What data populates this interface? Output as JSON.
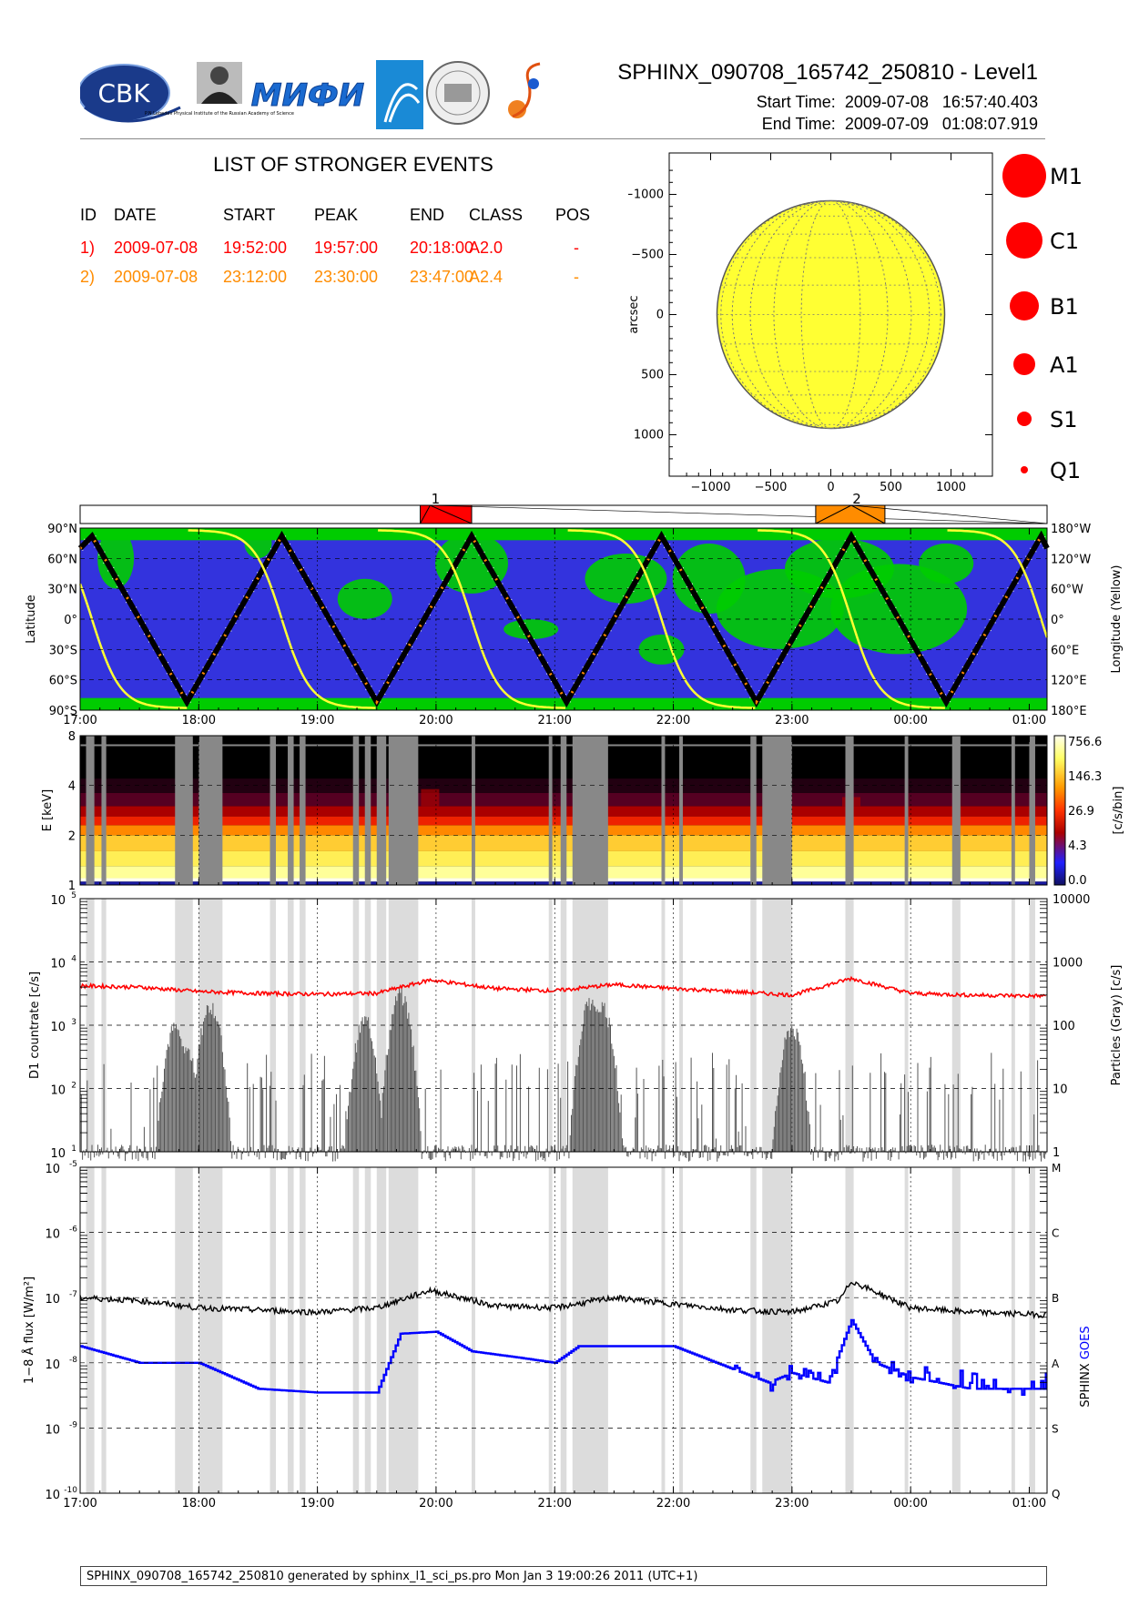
{
  "header": {
    "title": "SPHINX_090708_165742_250810 - Level1",
    "start_label": "Start Time:",
    "start_value": "2009-07-08   16:57:40.403",
    "end_label": "End Time:",
    "end_value": "2009-07-09   01:08:07.919",
    "logos": [
      {
        "name": "cbk-logo",
        "text": "CBK"
      },
      {
        "name": "lebedev-institute-logo",
        "text": "P.N.Lebedev Physical Institute of the Russian Academy of Science"
      },
      {
        "name": "mifi-logo",
        "text": "МИФИ"
      },
      {
        "name": "institute-shield-logo"
      },
      {
        "name": "university-seal-logo"
      },
      {
        "name": "spiral-logo"
      }
    ]
  },
  "events": {
    "title": "LIST OF STRONGER EVENTS",
    "columns": [
      "ID",
      "DATE",
      "START",
      "PEAK",
      "END",
      "CLASS",
      "POS"
    ],
    "rows": [
      {
        "id": "1)",
        "date": "2009-07-08",
        "start": "19:52:00",
        "peak": "19:57:00",
        "end": "20:18:00",
        "class": "A2.0",
        "pos": "-",
        "color": "#ff0000"
      },
      {
        "id": "2)",
        "date": "2009-07-08",
        "start": "23:12:00",
        "peak": "23:30:00",
        "end": "23:47:00",
        "class": "A2.4",
        "pos": "-",
        "color": "#ff8c00"
      }
    ]
  },
  "sun_map": {
    "xlabel": "arcsec",
    "ylabel": "arcsec",
    "x_ticks": [
      "−1000",
      "−500",
      "0",
      "500",
      "1000"
    ],
    "y_ticks": [
      "1000",
      "500",
      "0",
      "−500",
      "−1000"
    ],
    "disk_color": "#ffff33"
  },
  "class_legend": [
    "M1",
    "C1",
    "B1",
    "A1",
    "S1",
    "Q1"
  ],
  "timeline": {
    "time_ticks": [
      "17:00",
      "18:00",
      "19:00",
      "20:00",
      "21:00",
      "22:00",
      "23:00",
      "00:00",
      "01:00"
    ],
    "event_bars": [
      {
        "label": "1",
        "start": "19:52",
        "peak": "19:57",
        "end": "20:18",
        "color": "#ff0000"
      },
      {
        "label": "2",
        "start": "23:12",
        "peak": "23:30",
        "end": "23:47",
        "color": "#ff8c00"
      }
    ]
  },
  "chart_data": [
    {
      "type": "line",
      "name": "orbit-panel",
      "ylabel": "Latitude",
      "ylabel_right": "Longitude (Yellow)",
      "y_ticks_left": [
        "90°N",
        "60°N",
        "30°N",
        "0°",
        "30°S",
        "60°S",
        "90°S"
      ],
      "y_ticks_right": [
        "180°W",
        "120°W",
        "60°W",
        "0°",
        "60°E",
        "120°E",
        "180°E"
      ],
      "ylim": [
        -90,
        90
      ],
      "latitude_extrema": {
        "maxima_hours": [
          17.1,
          18.7,
          20.3,
          21.9,
          23.5,
          25.1
        ],
        "minima_hours": [
          17.9,
          19.5,
          21.1,
          22.7,
          24.3
        ],
        "amplitude": 82
      },
      "longitude_crossing_hours": [
        17.9,
        19.5,
        21.1,
        22.7,
        24.3
      ],
      "colors": {
        "background": "#3333dd",
        "land": "#00cc00",
        "latitude": "#000000",
        "longitude": "#ffff33"
      }
    },
    {
      "type": "heatmap",
      "name": "spectrogram-panel",
      "ylabel": "E [keV]",
      "y_ticks": [
        "8",
        "4",
        "2",
        "1"
      ],
      "ylim": [
        1,
        8
      ],
      "colorbar_ticks": [
        "756.6",
        "146.3",
        "26.9",
        "4.3",
        "0.0"
      ],
      "colorbar_label": "[c/s/bin]"
    },
    {
      "type": "line",
      "name": "count-rate-panel",
      "ylabel": "D1 countrate [c/s]",
      "ylabel_right": "Particles (Gray) [c/s]",
      "y_ticks_left": [
        "10",
        "10",
        "10",
        "10",
        "10"
      ],
      "y_ticks_left_exp": [
        "5",
        "4",
        "3",
        "2",
        "1"
      ],
      "y_ticks_right": [
        "10000",
        "1000",
        "100",
        "10",
        "1"
      ],
      "ylim": [
        10,
        100000
      ],
      "series": [
        {
          "values_by_hour": [
            [
              17.0,
              4200
            ],
            [
              17.5,
              4000
            ],
            [
              18.0,
              3400
            ],
            [
              18.5,
              3200
            ],
            [
              19.0,
              3100
            ],
            [
              19.5,
              3200
            ],
            [
              19.95,
              5200
            ],
            [
              20.5,
              3800
            ],
            [
              21.0,
              3500
            ],
            [
              21.5,
              4400
            ],
            [
              22.0,
              3800
            ],
            [
              22.5,
              3400
            ],
            [
              23.0,
              3000
            ],
            [
              23.5,
              5500
            ],
            [
              24.0,
              3200
            ],
            [
              24.5,
              3000
            ],
            [
              25.1,
              2900
            ]
          ],
          "color": "#ff0000"
        },
        {
          "values_by_hour": [
            [
              17.8,
              900
            ],
            [
              17.9,
              400
            ],
            [
              18.1,
              2100
            ],
            [
              19.4,
              1200
            ],
            [
              19.7,
              3000
            ],
            [
              21.3,
              2200
            ],
            [
              21.4,
              2000
            ],
            [
              23.0,
              900
            ]
          ],
          "color": "#555555"
        }
      ]
    },
    {
      "type": "line",
      "name": "goes-flux-panel",
      "ylabel": "1−8 Å flux [W/m²]",
      "ylabel_right": "SPHINX GOES",
      "ylabel_right_parts": [
        "SPHINX",
        "GOES"
      ],
      "y_ticks_left": [
        "10",
        "10",
        "10",
        "10",
        "10",
        "10"
      ],
      "y_ticks_left_exp": [
        "-5",
        "-6",
        "-7",
        "-8",
        "-9",
        "-10"
      ],
      "y_ticks_right": [
        "M",
        "C",
        "B",
        "A",
        "S",
        "Q"
      ],
      "ylim": [
        1e-10,
        1e-05
      ],
      "series": [
        {
          "name": "SPHINX",
          "values_by_hour": [
            [
              17.0,
              1e-07
            ],
            [
              17.5,
              9e-08
            ],
            [
              18.0,
              7e-08
            ],
            [
              18.5,
              6.5e-08
            ],
            [
              19.0,
              6e-08
            ],
            [
              19.5,
              7e-08
            ],
            [
              19.95,
              1.3e-07
            ],
            [
              20.5,
              7.5e-08
            ],
            [
              21.0,
              7e-08
            ],
            [
              21.5,
              1e-07
            ],
            [
              22.0,
              8e-08
            ],
            [
              22.5,
              6.5e-08
            ],
            [
              23.0,
              6e-08
            ],
            [
              23.4,
              9e-08
            ],
            [
              23.5,
              1.8e-07
            ],
            [
              24.0,
              7e-08
            ],
            [
              24.5,
              6e-08
            ],
            [
              25.1,
              5.5e-08
            ]
          ],
          "color": "#000000"
        },
        {
          "name": "GOES",
          "values_by_hour": [
            [
              17.0,
              1.8e-08
            ],
            [
              17.5,
              1e-08
            ],
            [
              18.0,
              1e-08
            ],
            [
              18.5,
              4e-09
            ],
            [
              19.0,
              3.5e-09
            ],
            [
              19.5,
              3.5e-09
            ],
            [
              19.7,
              2.8e-08
            ],
            [
              20.0,
              3e-08
            ],
            [
              20.3,
              1.5e-08
            ],
            [
              20.7,
              1.2e-08
            ],
            [
              21.0,
              1e-08
            ],
            [
              21.2,
              1.8e-08
            ],
            [
              22.0,
              1.8e-08
            ],
            [
              22.5,
              8e-09
            ],
            [
              22.8,
              5e-09
            ],
            [
              23.0,
              7e-09
            ],
            [
              23.3,
              5e-09
            ],
            [
              23.5,
              4.5e-08
            ],
            [
              23.7,
              1e-08
            ],
            [
              24.0,
              6e-09
            ],
            [
              24.5,
              4e-09
            ],
            [
              25.1,
              4e-09
            ]
          ],
          "color": "#0000ff"
        }
      ]
    }
  ],
  "footer": {
    "text": "SPHINX_090708_165742_250810 generated by sphinx_l1_sci_ps.pro Mon Jan  3 19:00:26 2011 (UTC+1)"
  }
}
